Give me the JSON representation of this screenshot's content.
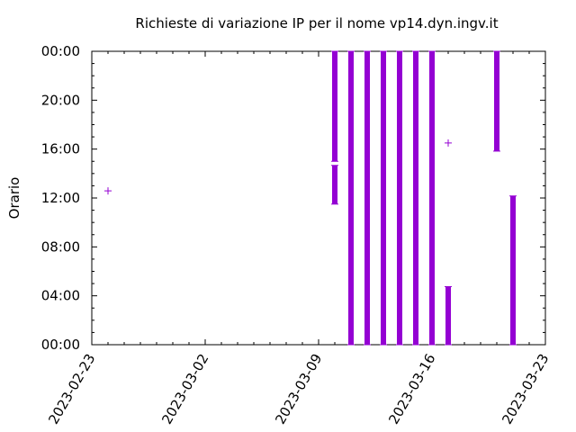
{
  "chart_data": {
    "type": "scatter",
    "title": "Richieste di variazione IP per il nome vp14.dyn.ingv.it",
    "xlabel": "",
    "ylabel": "Orario",
    "x_type": "date",
    "xlim": [
      "2023-02-23",
      "2023-03-23"
    ],
    "x_ticks": [
      "2023-02-23",
      "2023-03-02",
      "2023-03-09",
      "2023-03-16",
      "2023-03-23"
    ],
    "ylim": [
      "00:00",
      "24:00"
    ],
    "y_ticks": [
      "00:00",
      "04:00",
      "08:00",
      "12:00",
      "16:00",
      "20:00",
      "00:00"
    ],
    "grid": false,
    "series": [
      {
        "color": "#9400d3",
        "marker": "+",
        "points": [
          {
            "date": "2023-02-24",
            "from": "12:35",
            "to": "12:35"
          },
          {
            "date": "2023-03-10",
            "from": "11:30",
            "to": "14:40"
          },
          {
            "date": "2023-03-10",
            "from": "15:00",
            "to": "24:00"
          },
          {
            "date": "2023-03-11",
            "from": "00:00",
            "to": "24:00"
          },
          {
            "date": "2023-03-12",
            "from": "00:00",
            "to": "24:00"
          },
          {
            "date": "2023-03-13",
            "from": "00:00",
            "to": "24:00"
          },
          {
            "date": "2023-03-14",
            "from": "00:00",
            "to": "24:00"
          },
          {
            "date": "2023-03-15",
            "from": "00:00",
            "to": "24:00"
          },
          {
            "date": "2023-03-16",
            "from": "00:00",
            "to": "24:00"
          },
          {
            "date": "2023-03-17",
            "from": "00:00",
            "to": "04:45"
          },
          {
            "date": "2023-03-17",
            "from": "16:30",
            "to": "16:30"
          },
          {
            "date": "2023-03-20",
            "from": "15:50",
            "to": "24:00"
          },
          {
            "date": "2023-03-21",
            "from": "00:00",
            "to": "12:10"
          }
        ]
      }
    ]
  }
}
